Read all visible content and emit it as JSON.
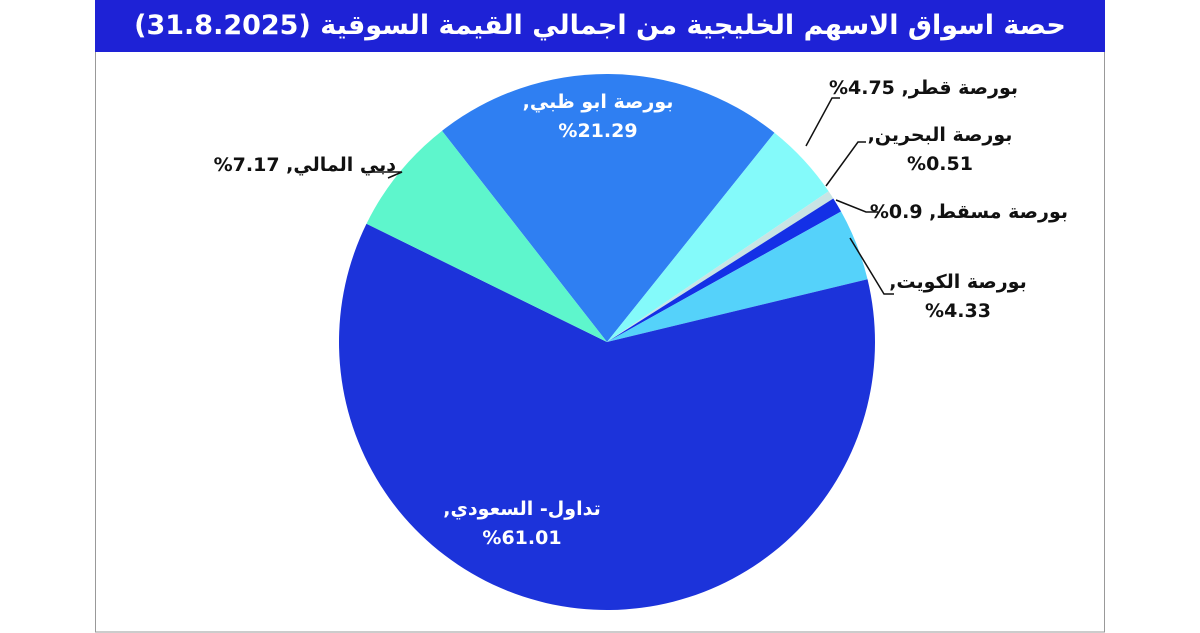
{
  "chart_data": {
    "type": "pie",
    "title": "حصة اسواق الاسهم الخليجية من اجمالي القيمة السوقية (31.8.2025)",
    "categories": [
      "بورصة ابو ظبي,",
      "بورصة قطر,",
      "بورصة البحرين,",
      "بورصة مسقط,",
      "بورصة الكويت,",
      "تداول- السعودي,",
      "دبي المالي,"
    ],
    "values": [
      21.29,
      4.75,
      0.51,
      0.9,
      4.33,
      61.01,
      7.17
    ],
    "value_labels": [
      "%21.29",
      "%4.75",
      "%0.51",
      "%0.9",
      "%4.33",
      "%61.01",
      "%7.17"
    ],
    "colors": [
      "#2f7ff2",
      "#84fafa",
      "#c9e4e4",
      "#1430e6",
      "#55d2fa",
      "#1c33da",
      "#5ef6cc"
    ]
  }
}
